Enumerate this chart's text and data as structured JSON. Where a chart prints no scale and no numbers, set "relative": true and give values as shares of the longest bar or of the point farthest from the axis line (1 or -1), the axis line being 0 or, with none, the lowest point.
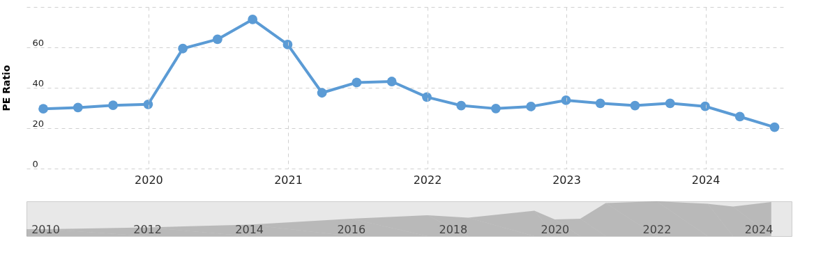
{
  "chart_data": [
    {
      "type": "line",
      "ylabel": "PE Ratio",
      "x": [
        "2019-03-31",
        "2019-06-30",
        "2019-09-30",
        "2019-12-31",
        "2020-03-31",
        "2020-06-30",
        "2020-09-30",
        "2020-12-31",
        "2021-03-31",
        "2021-06-30",
        "2021-09-30",
        "2021-12-31",
        "2022-03-31",
        "2022-06-30",
        "2022-09-30",
        "2022-12-31",
        "2023-03-31",
        "2023-06-30",
        "2023-09-30",
        "2023-12-31",
        "2024-03-31",
        "2024-06-30"
      ],
      "series": [
        {
          "color": "#5b9bd5",
          "values": [
            29.6,
            30.2,
            31.3,
            31.8,
            59.4,
            64.0,
            73.8,
            61.4,
            37.5,
            42.6,
            43.1,
            35.4,
            31.2,
            29.7,
            30.7,
            33.8,
            32.3,
            31.2,
            32.3,
            30.8,
            25.7,
            20.5
          ]
        }
      ],
      "xlim": [
        "2019-02-15",
        "2024-08-01"
      ],
      "xticks": [
        {
          "value": "2020-01-01",
          "label": "2020"
        },
        {
          "value": "2021-01-01",
          "label": "2021"
        },
        {
          "value": "2022-01-01",
          "label": "2022"
        },
        {
          "value": "2023-01-01",
          "label": "2023"
        },
        {
          "value": "2024-01-01",
          "label": "2024"
        }
      ],
      "ylim": [
        0,
        80
      ],
      "yticks": [
        0,
        20,
        40,
        60,
        {
          "value": 80,
          "label": null
        }
      ],
      "grid": true,
      "marker": "circle",
      "line_style": "solid"
    },
    {
      "type": "area",
      "relative": true,
      "x": [
        2009.63,
        2010,
        2012,
        2014,
        2016,
        2017.5,
        2018.3,
        2019.6,
        2020,
        2020.5,
        2021,
        2022,
        2023,
        2023.5,
        2024.25
      ],
      "series": [
        {
          "color": "#808080",
          "values": [
            0.2,
            0.2,
            0.25,
            0.33,
            0.5,
            0.6,
            0.53,
            0.73,
            0.48,
            0.5,
            0.95,
            1.0,
            0.93,
            0.85,
            0.98
          ]
        }
      ],
      "xlim": [
        2009.63,
        2024.65
      ],
      "xticks": [
        2010,
        2012,
        2014,
        2016,
        2018,
        2020,
        2022,
        2024
      ],
      "grid": false
    }
  ]
}
